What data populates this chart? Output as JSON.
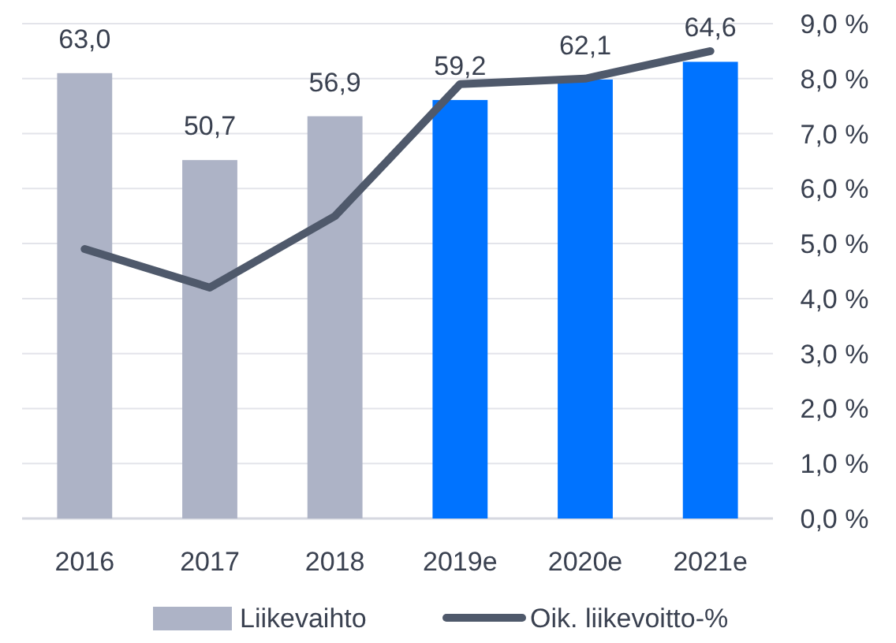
{
  "chart_data": {
    "type": "bar",
    "categories": [
      "2016",
      "2017",
      "2018",
      "2019e",
      "2020e",
      "2021e"
    ],
    "series": [
      {
        "name": "Liikevaihto",
        "color": "#adb3c6",
        "colors": [
          "#adb3c6",
          "#adb3c6",
          "#adb3c6",
          "#0073ff",
          "#0073ff",
          "#0073ff"
        ],
        "values": [
          63.0,
          50.7,
          56.9,
          59.2,
          62.1,
          64.6
        ],
        "value_labels": [
          "63,0",
          "50,7",
          "56,9",
          "59,2",
          "62,1",
          "64,6"
        ]
      },
      {
        "name": "Oik. liikevoitto-%",
        "type": "line",
        "axis": "y2",
        "color": "#4f596b",
        "values": [
          4.9,
          4.2,
          5.5,
          7.9,
          8.0,
          8.5
        ]
      }
    ],
    "ylim": [
      0,
      70
    ],
    "y2lim": [
      0,
      9
    ],
    "y2ticks": [
      {
        "value": 0,
        "label": "0,0 %"
      },
      {
        "value": 1,
        "label": "1,0 %"
      },
      {
        "value": 2,
        "label": "2,0 %"
      },
      {
        "value": 3,
        "label": "3,0 %"
      },
      {
        "value": 4,
        "label": "4,0 %"
      },
      {
        "value": 5,
        "label": "5,0 %"
      },
      {
        "value": 6,
        "label": "6,0 %"
      },
      {
        "value": 7,
        "label": "7,0 %"
      },
      {
        "value": 8,
        "label": "8,0 %"
      },
      {
        "value": 9,
        "label": "9,0 %"
      }
    ],
    "grid": true,
    "legend": "bottom",
    "marker": "none",
    "line_style": "solid"
  }
}
